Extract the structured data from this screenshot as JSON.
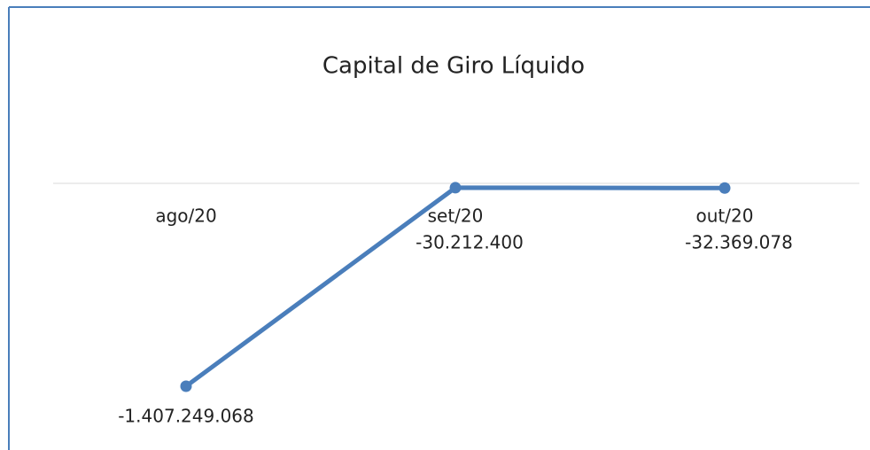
{
  "chart_data": {
    "type": "line",
    "title": "Capital de Giro Líquido",
    "categories": [
      "ago/20",
      "set/20",
      "out/20"
    ],
    "series": [
      {
        "name": null,
        "color": "#4a7ebb",
        "values": [
          -1407249068,
          -30212400,
          -32369078
        ],
        "value_labels": [
          "-1.407.249.068",
          "-30.212.400",
          "-32.369.078"
        ]
      }
    ]
  }
}
